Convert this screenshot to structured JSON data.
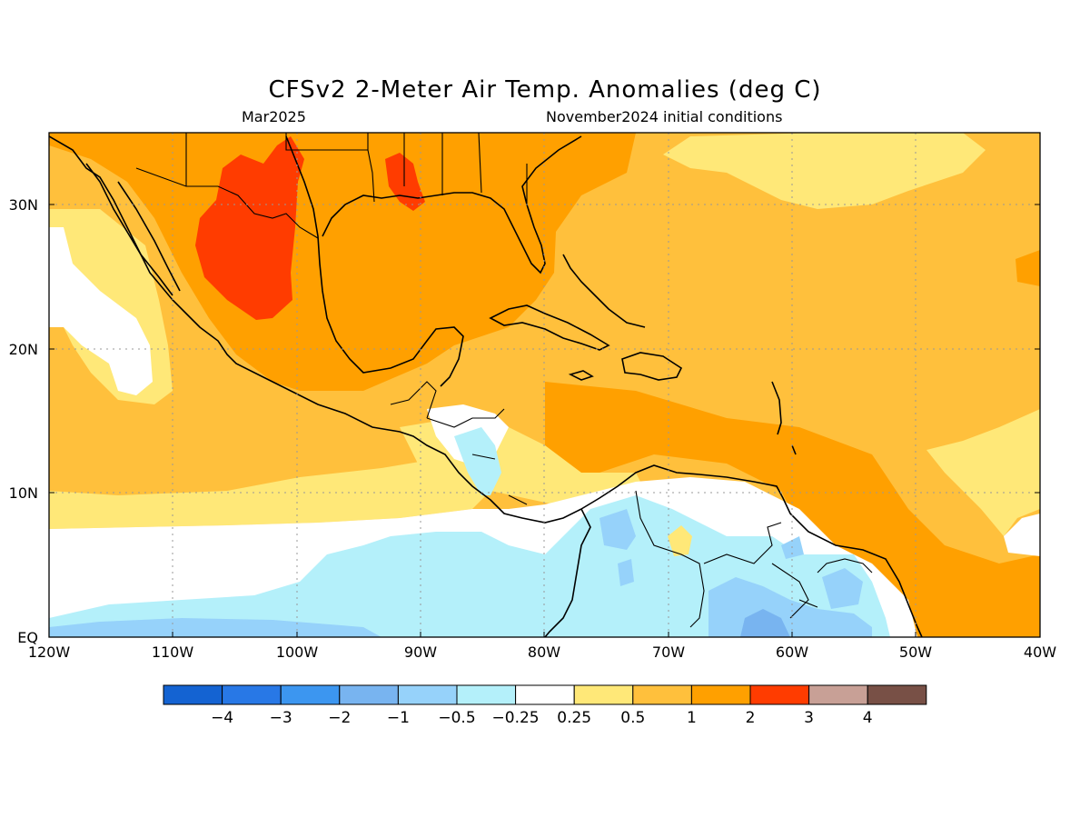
{
  "title": "CFSv2 2-Meter Air Temp. Anomalies (deg C)",
  "valid_month": "Mar2025",
  "initial_conditions": "November2024 initial conditions",
  "lat_labels": [
    "30N",
    "20N",
    "10N",
    "EQ"
  ],
  "lon_labels": [
    "120W",
    "110W",
    "100W",
    "90W",
    "80W",
    "70W",
    "60W",
    "50W",
    "40W"
  ],
  "colorbar": {
    "colors": [
      "#1463d2",
      "#2878e6",
      "#3c96f0",
      "#78b4f0",
      "#96d2fa",
      "#b4f0fa",
      "#ffffff",
      "#ffe878",
      "#ffc03c",
      "#ffa000",
      "#ff3c00",
      "#c8a096",
      "#785046"
    ],
    "labels": [
      "-4",
      "-3",
      "-2",
      "-1",
      "-0.5",
      "-0.25",
      "0.25",
      "0.5",
      "1",
      "2",
      "3",
      "4"
    ]
  },
  "map_colors": {
    "ocean_base": "#ffc03c",
    "warm": "#ffa000",
    "hot": "#ff3c00",
    "mild": "#ffe878",
    "neutral": "#ffffff",
    "cool": "#b4f0fa",
    "cooler": "#96d2fa",
    "coolest": "#78b4f0",
    "coast": "#000000"
  }
}
